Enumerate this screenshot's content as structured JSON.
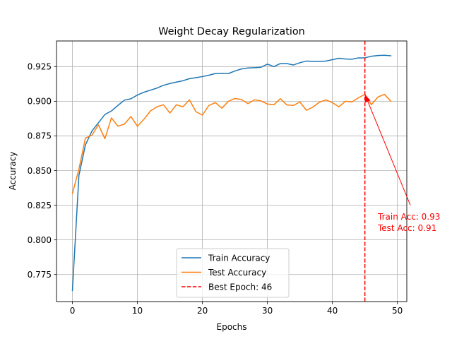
{
  "chart_data": {
    "type": "line",
    "title": "Weight Decay Regularization",
    "xlabel": "Epochs",
    "ylabel": "Accuracy",
    "xlim": [
      -2.45,
      51.45
    ],
    "ylim": [
      0.7555,
      0.9435
    ],
    "x_ticks": [
      0,
      10,
      20,
      30,
      40,
      50
    ],
    "y_ticks": [
      0.775,
      0.8,
      0.825,
      0.85,
      0.875,
      0.9,
      0.925
    ],
    "x_tick_labels": [
      "0",
      "10",
      "20",
      "30",
      "40",
      "50"
    ],
    "y_tick_labels": [
      "0.775",
      "0.800",
      "0.825",
      "0.850",
      "0.875",
      "0.900",
      "0.925"
    ],
    "grid": true,
    "legend_position": "bottom-center",
    "x": [
      0,
      1,
      2,
      3,
      4,
      5,
      6,
      7,
      8,
      9,
      10,
      11,
      12,
      13,
      14,
      15,
      16,
      17,
      18,
      19,
      20,
      21,
      22,
      23,
      24,
      25,
      26,
      27,
      28,
      29,
      30,
      31,
      32,
      33,
      34,
      35,
      36,
      37,
      38,
      39,
      40,
      41,
      42,
      43,
      44,
      45,
      46,
      47,
      48,
      49
    ],
    "series": [
      {
        "name": "Train Accuracy",
        "color": "#1f77b4",
        "values": [
          0.7635,
          0.8465,
          0.8685,
          0.8785,
          0.8845,
          0.8905,
          0.893,
          0.897,
          0.9008,
          0.9018,
          0.9045,
          0.9065,
          0.908,
          0.9095,
          0.9115,
          0.9128,
          0.9138,
          0.9148,
          0.9163,
          0.917,
          0.9178,
          0.9188,
          0.92,
          0.9202,
          0.92,
          0.9218,
          0.9233,
          0.924,
          0.9242,
          0.9245,
          0.9268,
          0.925,
          0.9272,
          0.9272,
          0.9262,
          0.9278,
          0.929,
          0.9288,
          0.9287,
          0.929,
          0.93,
          0.931,
          0.9305,
          0.9303,
          0.9313,
          0.9313,
          0.9325,
          0.933,
          0.9332,
          0.9328
        ]
      },
      {
        "name": "Test Accuracy",
        "color": "#ff7f0e",
        "values": [
          0.8335,
          0.851,
          0.8735,
          0.8755,
          0.883,
          0.873,
          0.888,
          0.882,
          0.8835,
          0.889,
          0.882,
          0.887,
          0.893,
          0.896,
          0.8975,
          0.8915,
          0.8975,
          0.896,
          0.901,
          0.8925,
          0.89,
          0.897,
          0.899,
          0.895,
          0.9,
          0.902,
          0.9013,
          0.8983,
          0.901,
          0.9003,
          0.898,
          0.8975,
          0.9018,
          0.8973,
          0.897,
          0.8995,
          0.8935,
          0.8958,
          0.8993,
          0.901,
          0.899,
          0.896,
          0.9,
          0.8995,
          0.9025,
          0.905,
          0.8975,
          0.903,
          0.905,
          0.9
        ]
      }
    ],
    "best_epoch": {
      "x": 45,
      "label": "Best Epoch: 46",
      "color": "#ff0000",
      "annotation_lines": [
        "Train Acc: 0.93",
        "Test Acc: 0.91"
      ],
      "arrow_target": [
        45,
        0.905
      ],
      "annotation_anchor": [
        52.0,
        0.825
      ]
    }
  }
}
